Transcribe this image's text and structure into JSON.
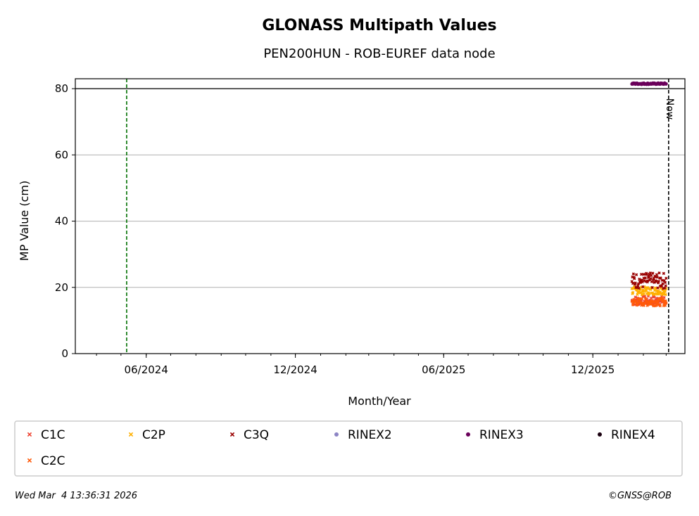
{
  "chart_data": {
    "type": "scatter",
    "title": "GLONASS Multipath Values",
    "subtitle": "PEN200HUN - ROB-EUREF data node",
    "xlabel": "Month/Year",
    "ylabel": "MP Value (cm)",
    "x_ticks": [
      "06/2024",
      "12/2024",
      "06/2025",
      "12/2025"
    ],
    "x_tick_dates": [
      "2024-06-01",
      "2024-12-01",
      "2025-06-01",
      "2025-12-01"
    ],
    "xlim": [
      "2024-03-06",
      "2026-03-24"
    ],
    "y_ticks": [
      0,
      20,
      40,
      60,
      80
    ],
    "ylim": [
      0,
      83
    ],
    "grid": "y",
    "markers": {
      "start_line": {
        "date": "2024-05-08",
        "color": "#007000"
      },
      "now_line": {
        "date": "2026-03-04",
        "label": "Now"
      },
      "limit_line": {
        "y": 80
      }
    },
    "series": [
      {
        "name": "C1C",
        "color": "#ee4433",
        "marker": "x",
        "x_start": "2026-01-18",
        "x_end": "2026-03-01",
        "y_base": 16.0,
        "y_spread": 1.4,
        "points": 70
      },
      {
        "name": "C2P",
        "color": "#ffb000",
        "marker": "x",
        "x_start": "2026-01-18",
        "x_end": "2026-03-01",
        "y_base": 19.0,
        "y_spread": 1.2,
        "points": 70
      },
      {
        "name": "C3Q",
        "color": "#990000",
        "marker": "x",
        "x_start": "2026-01-18",
        "x_end": "2026-03-01",
        "y_base": 22.0,
        "y_spread": 2.4,
        "points": 70
      },
      {
        "name": "RINEX2",
        "color": "#8c84c4",
        "marker": "dot",
        "points": 0
      },
      {
        "name": "RINEX3",
        "color": "#6a005a",
        "marker": "dot",
        "x_start": "2026-01-18",
        "x_end": "2026-03-01",
        "y_base": 81.5,
        "y_spread": 0.2,
        "points": 70
      },
      {
        "name": "RINEX4",
        "color": "#1a0010",
        "marker": "dot",
        "points": 0
      },
      {
        "name": "C2C",
        "color": "#ff5a0a",
        "marker": "x",
        "x_start": "2026-01-18",
        "x_end": "2026-03-01",
        "y_base": 15.6,
        "y_spread": 1.2,
        "points": 70
      }
    ],
    "legend_placement": "bottom"
  },
  "footer": {
    "timestamp": "Wed Mar  4 13:36:31 2026",
    "credit": "©GNSS@ROB"
  }
}
